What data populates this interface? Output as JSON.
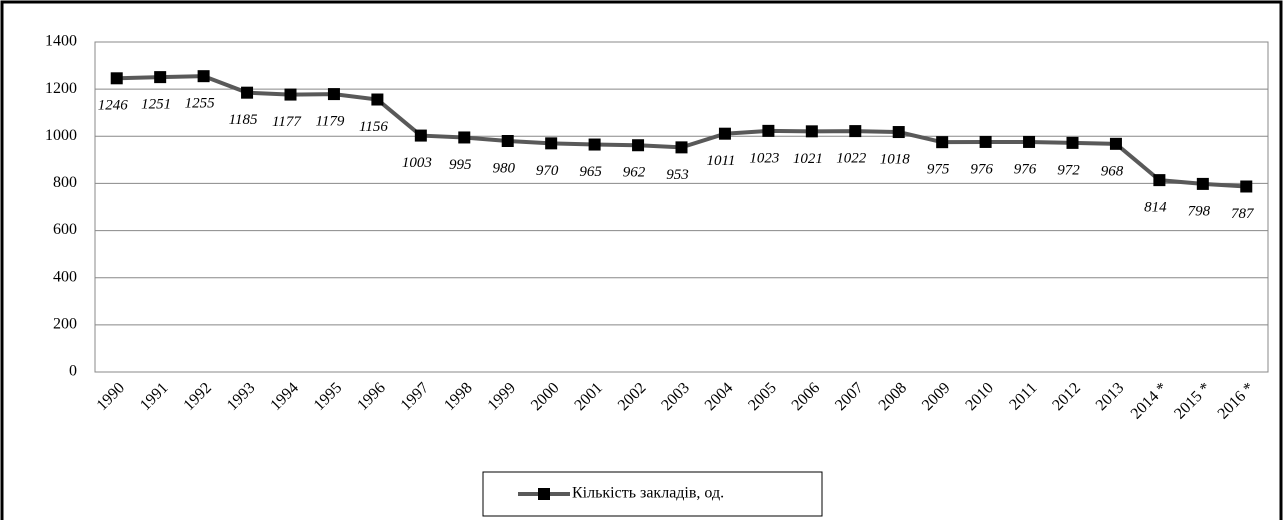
{
  "chart_data": {
    "type": "line",
    "categories": [
      "1990",
      "1991",
      "1992",
      "1993",
      "1994",
      "1995",
      "1996",
      "1997",
      "1998",
      "1999",
      "2000",
      "2001",
      "2002",
      "2003",
      "2004",
      "2005",
      "2006",
      "2007",
      "2008",
      "2009",
      "2010",
      "2011",
      "2012",
      "2013",
      "2014 *",
      "2015 *",
      "2016 *"
    ],
    "series": [
      {
        "name": "Кількість закладів, од.",
        "color": "#595959",
        "marker_color": "#000000",
        "values": [
          1246,
          1251,
          1255,
          1185,
          1177,
          1179,
          1156,
          1003,
          995,
          980,
          970,
          965,
          962,
          953,
          1011,
          1023,
          1021,
          1022,
          1018,
          975,
          976,
          976,
          972,
          968,
          814,
          798,
          787
        ]
      }
    ],
    "ylim": [
      0,
      1400
    ],
    "yticks": [
      0,
      200,
      400,
      600,
      800,
      1000,
      1200,
      1400
    ],
    "grid": true,
    "legend": "bottom"
  }
}
